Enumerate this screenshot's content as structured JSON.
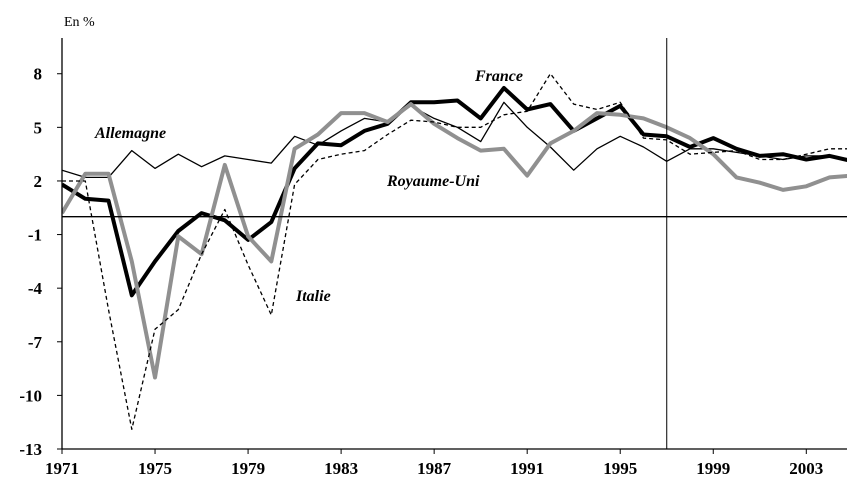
{
  "chart_data": {
    "type": "line",
    "y_label": "En %",
    "x": [
      1971,
      1972,
      1973,
      1974,
      1975,
      1976,
      1977,
      1978,
      1979,
      1980,
      1981,
      1982,
      1983,
      1984,
      1985,
      1986,
      1987,
      1988,
      1989,
      1990,
      1991,
      1992,
      1993,
      1994,
      1995,
      1996,
      1997,
      1998,
      1999,
      2000,
      2001,
      2002,
      2003,
      2004,
      2005
    ],
    "series": [
      {
        "name": "France",
        "color": "#000000",
        "width": 4,
        "dashed": false,
        "values": [
          1.8,
          1.0,
          0.9,
          -4.4,
          -2.5,
          -0.8,
          0.2,
          -0.2,
          -1.3,
          -0.3,
          2.7,
          4.1,
          4.0,
          4.8,
          5.2,
          6.4,
          6.4,
          6.5,
          5.5,
          7.2,
          6.0,
          6.3,
          4.8,
          5.5,
          6.2,
          4.6,
          4.5,
          3.9,
          4.4,
          3.8,
          3.4,
          3.5,
          3.2,
          3.4,
          3.1
        ]
      },
      {
        "name": "Allemagne",
        "color": "#000000",
        "width": 1.3,
        "dashed": false,
        "values": [
          2.6,
          2.2,
          2.2,
          3.7,
          2.7,
          3.5,
          2.8,
          3.4,
          3.2,
          3.0,
          4.5,
          4.0,
          4.8,
          5.5,
          5.3,
          6.2,
          5.5,
          5.0,
          4.2,
          6.4,
          5.0,
          3.9,
          2.6,
          3.8,
          4.5,
          3.9,
          3.1,
          3.8,
          3.8,
          3.6,
          3.4,
          3.2,
          3.4,
          3.4,
          3.2
        ]
      },
      {
        "name": "Royaume-Uni",
        "color": "#909090",
        "width": 4,
        "dashed": false,
        "values": [
          0.2,
          2.4,
          2.4,
          -2.5,
          -9.0,
          -1.1,
          -2.1,
          2.9,
          -1.1,
          -2.5,
          3.8,
          4.6,
          5.8,
          5.8,
          5.3,
          6.3,
          5.2,
          4.4,
          3.7,
          3.8,
          2.3,
          4.1,
          4.8,
          5.8,
          5.7,
          5.5,
          5.0,
          4.4,
          3.5,
          2.2,
          1.9,
          1.5,
          1.7,
          2.2,
          2.3
        ]
      },
      {
        "name": "Italie",
        "color": "#000000",
        "width": 1.3,
        "dashed": true,
        "values": [
          2.0,
          2.0,
          -5.2,
          -11.9,
          -6.3,
          -5.2,
          -2.1,
          0.4,
          -2.7,
          -5.5,
          1.8,
          3.2,
          3.5,
          3.7,
          4.6,
          5.4,
          5.3,
          5.0,
          5.0,
          5.7,
          5.9,
          8.0,
          6.3,
          6.0,
          6.4,
          4.4,
          4.3,
          3.5,
          3.6,
          3.7,
          3.2,
          3.2,
          3.5,
          3.8,
          3.8
        ]
      }
    ],
    "xlim": [
      1971,
      2004.75
    ],
    "xticks": [
      1971,
      1975,
      1979,
      1983,
      1987,
      1991,
      1995,
      1999,
      2003
    ],
    "ylim": [
      -13,
      10
    ],
    "yticks": [
      -13,
      -10,
      -7,
      -4,
      -1,
      2,
      5,
      8
    ],
    "zero_line": true,
    "divider_x": 1997
  }
}
